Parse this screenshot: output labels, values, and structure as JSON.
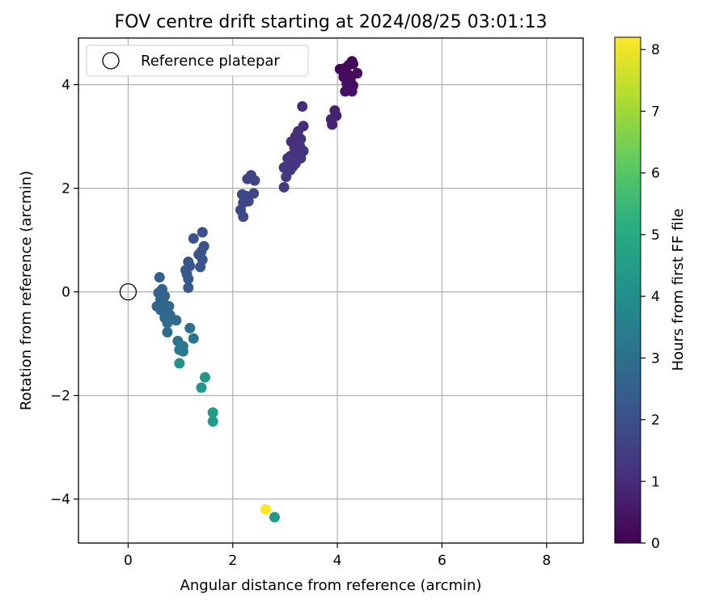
{
  "chart_data": {
    "type": "scatter",
    "title": "FOV centre drift starting at 2024/08/25 03:01:13",
    "xlabel": "Angular distance from reference (arcmin)",
    "ylabel": "Rotation from reference (arcmin)",
    "xlim": [
      -0.95,
      8.7
    ],
    "ylim": [
      -4.85,
      4.9
    ],
    "xticks": [
      0,
      2,
      4,
      6,
      8
    ],
    "yticks": [
      -4,
      -2,
      0,
      2,
      4
    ],
    "grid": true,
    "legend": {
      "placement": "upper-left",
      "entries": [
        {
          "label": "Reference platepar",
          "marker": "open-circle"
        }
      ]
    },
    "reference_point": {
      "x": 0,
      "y": 0
    },
    "colorbar": {
      "label": "Hours from first FF file",
      "colormap": "viridis",
      "range": [
        0,
        8.2
      ],
      "ticks": [
        0,
        1,
        2,
        3,
        4,
        5,
        6,
        7,
        8
      ]
    },
    "points": [
      {
        "x": 4.28,
        "y": 4.45,
        "c": 0.1
      },
      {
        "x": 4.22,
        "y": 4.38,
        "c": 0.12
      },
      {
        "x": 4.05,
        "y": 4.3,
        "c": 0.1
      },
      {
        "x": 4.15,
        "y": 4.32,
        "c": 0.15
      },
      {
        "x": 4.3,
        "y": 4.4,
        "c": 0.18
      },
      {
        "x": 4.38,
        "y": 4.22,
        "c": 0.2
      },
      {
        "x": 4.2,
        "y": 4.2,
        "c": 0.22
      },
      {
        "x": 4.12,
        "y": 4.15,
        "c": 0.22
      },
      {
        "x": 4.25,
        "y": 4.1,
        "c": 0.25
      },
      {
        "x": 4.18,
        "y": 4.02,
        "c": 0.28
      },
      {
        "x": 4.3,
        "y": 3.98,
        "c": 0.3
      },
      {
        "x": 4.22,
        "y": 3.9,
        "c": 0.32
      },
      {
        "x": 4.15,
        "y": 3.87,
        "c": 0.35
      },
      {
        "x": 4.28,
        "y": 3.87,
        "c": 0.36
      },
      {
        "x": 3.95,
        "y": 3.5,
        "c": 0.75
      },
      {
        "x": 3.98,
        "y": 3.4,
        "c": 0.78
      },
      {
        "x": 3.88,
        "y": 3.33,
        "c": 0.8
      },
      {
        "x": 3.9,
        "y": 3.23,
        "c": 0.82
      },
      {
        "x": 3.33,
        "y": 3.58,
        "c": 1.0
      },
      {
        "x": 3.35,
        "y": 3.2,
        "c": 1.05
      },
      {
        "x": 3.25,
        "y": 3.1,
        "c": 1.08
      },
      {
        "x": 3.2,
        "y": 3.0,
        "c": 1.1
      },
      {
        "x": 3.3,
        "y": 2.95,
        "c": 1.1
      },
      {
        "x": 3.12,
        "y": 2.9,
        "c": 1.12
      },
      {
        "x": 3.28,
        "y": 2.82,
        "c": 1.15
      },
      {
        "x": 3.18,
        "y": 2.78,
        "c": 1.15
      },
      {
        "x": 3.35,
        "y": 2.72,
        "c": 1.18
      },
      {
        "x": 3.22,
        "y": 2.65,
        "c": 1.2
      },
      {
        "x": 3.1,
        "y": 2.62,
        "c": 1.2
      },
      {
        "x": 3.3,
        "y": 2.58,
        "c": 1.22
      },
      {
        "x": 3.05,
        "y": 2.58,
        "c": 1.25
      },
      {
        "x": 3.15,
        "y": 2.55,
        "c": 1.25
      },
      {
        "x": 3.2,
        "y": 2.48,
        "c": 1.28
      },
      {
        "x": 3.05,
        "y": 2.45,
        "c": 1.3
      },
      {
        "x": 3.15,
        "y": 2.42,
        "c": 1.3
      },
      {
        "x": 2.98,
        "y": 2.4,
        "c": 1.32
      },
      {
        "x": 3.1,
        "y": 2.35,
        "c": 1.35
      },
      {
        "x": 3.02,
        "y": 2.22,
        "c": 1.38
      },
      {
        "x": 2.98,
        "y": 2.02,
        "c": 1.4
      },
      {
        "x": 2.35,
        "y": 2.25,
        "c": 1.6
      },
      {
        "x": 2.28,
        "y": 2.18,
        "c": 1.62
      },
      {
        "x": 2.42,
        "y": 2.15,
        "c": 1.65
      },
      {
        "x": 2.25,
        "y": 1.85,
        "c": 1.7
      },
      {
        "x": 2.4,
        "y": 1.9,
        "c": 1.72
      },
      {
        "x": 2.18,
        "y": 1.88,
        "c": 1.72
      },
      {
        "x": 2.3,
        "y": 1.75,
        "c": 1.75
      },
      {
        "x": 2.2,
        "y": 1.72,
        "c": 1.75
      },
      {
        "x": 2.15,
        "y": 1.58,
        "c": 1.8
      },
      {
        "x": 2.2,
        "y": 1.45,
        "c": 1.82
      },
      {
        "x": 1.42,
        "y": 1.15,
        "c": 2.0
      },
      {
        "x": 1.25,
        "y": 1.03,
        "c": 2.05
      },
      {
        "x": 1.45,
        "y": 0.88,
        "c": 2.08
      },
      {
        "x": 1.4,
        "y": 0.78,
        "c": 2.1
      },
      {
        "x": 1.35,
        "y": 0.72,
        "c": 2.12
      },
      {
        "x": 1.42,
        "y": 0.62,
        "c": 2.15
      },
      {
        "x": 1.15,
        "y": 0.58,
        "c": 2.18
      },
      {
        "x": 1.18,
        "y": 0.5,
        "c": 2.2
      },
      {
        "x": 1.38,
        "y": 0.48,
        "c": 2.2
      },
      {
        "x": 1.1,
        "y": 0.42,
        "c": 2.22
      },
      {
        "x": 1.12,
        "y": 0.35,
        "c": 2.25
      },
      {
        "x": 1.15,
        "y": 0.25,
        "c": 2.28
      },
      {
        "x": 1.15,
        "y": 0.08,
        "c": 2.3
      },
      {
        "x": 0.6,
        "y": 0.28,
        "c": 2.5
      },
      {
        "x": 0.65,
        "y": 0.05,
        "c": 2.55
      },
      {
        "x": 0.58,
        "y": -0.02,
        "c": 2.58
      },
      {
        "x": 0.7,
        "y": -0.08,
        "c": 2.6
      },
      {
        "x": 0.62,
        "y": -0.15,
        "c": 2.62
      },
      {
        "x": 0.68,
        "y": -0.22,
        "c": 2.65
      },
      {
        "x": 0.55,
        "y": -0.28,
        "c": 2.68
      },
      {
        "x": 0.78,
        "y": -0.28,
        "c": 2.7
      },
      {
        "x": 0.62,
        "y": -0.35,
        "c": 2.72
      },
      {
        "x": 0.72,
        "y": -0.38,
        "c": 2.75
      },
      {
        "x": 0.8,
        "y": -0.45,
        "c": 2.78
      },
      {
        "x": 0.7,
        "y": -0.5,
        "c": 2.8
      },
      {
        "x": 0.92,
        "y": -0.55,
        "c": 2.82
      },
      {
        "x": 0.75,
        "y": -0.6,
        "c": 2.85
      },
      {
        "x": 0.75,
        "y": -0.78,
        "c": 2.9
      },
      {
        "x": 1.18,
        "y": -0.7,
        "c": 3.05
      },
      {
        "x": 1.25,
        "y": -0.9,
        "c": 3.1
      },
      {
        "x": 0.95,
        "y": -0.95,
        "c": 3.15
      },
      {
        "x": 1.05,
        "y": -1.05,
        "c": 3.2
      },
      {
        "x": 0.98,
        "y": -1.12,
        "c": 3.22
      },
      {
        "x": 1.05,
        "y": -1.15,
        "c": 3.25
      },
      {
        "x": 0.98,
        "y": -1.38,
        "c": 4.1
      },
      {
        "x": 1.47,
        "y": -1.65,
        "c": 4.3
      },
      {
        "x": 1.4,
        "y": -1.85,
        "c": 4.35
      },
      {
        "x": 1.62,
        "y": -2.33,
        "c": 4.4
      },
      {
        "x": 1.62,
        "y": -2.5,
        "c": 4.45
      },
      {
        "x": 2.8,
        "y": -4.35,
        "c": 4.4
      },
      {
        "x": 2.63,
        "y": -4.2,
        "c": 8.2
      }
    ]
  }
}
